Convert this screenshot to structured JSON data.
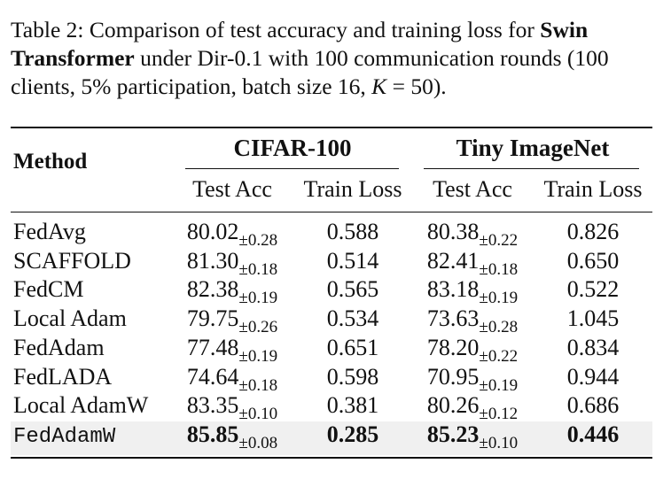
{
  "caption": {
    "prefix": "Table 2: Comparison of test accuracy and training loss for ",
    "bold_model": "Swin Transformer",
    "middle": " under Dir-0.1 with 100 communication rounds (100 clients, 5% participation, batch size 16, ",
    "k_symbol": "K",
    "k_eq": " = 50)."
  },
  "table": {
    "method_header": "Method",
    "groups": [
      {
        "title": "CIFAR-100",
        "sub_acc": "Test Acc",
        "sub_loss": "Train Loss"
      },
      {
        "title": "Tiny ImageNet",
        "sub_acc": "Test Acc",
        "sub_loss": "Train Loss"
      }
    ],
    "rows": [
      {
        "method": "FedAvg",
        "c_acc": "80.02",
        "c_std": "±0.28",
        "c_loss": "0.588",
        "t_acc": "80.38",
        "t_std": "±0.22",
        "t_loss": "0.826"
      },
      {
        "method": "SCAFFOLD",
        "c_acc": "81.30",
        "c_std": "±0.18",
        "c_loss": "0.514",
        "t_acc": "82.41",
        "t_std": "±0.18",
        "t_loss": "0.650"
      },
      {
        "method": "FedCM",
        "c_acc": "82.38",
        "c_std": "±0.19",
        "c_loss": "0.565",
        "t_acc": "83.18",
        "t_std": "±0.19",
        "t_loss": "0.522"
      },
      {
        "method": "Local Adam",
        "c_acc": "79.75",
        "c_std": "±0.26",
        "c_loss": "0.534",
        "t_acc": "73.63",
        "t_std": "±0.28",
        "t_loss": "1.045"
      },
      {
        "method": "FedAdam",
        "c_acc": "77.48",
        "c_std": "±0.19",
        "c_loss": "0.651",
        "t_acc": "78.20",
        "t_std": "±0.22",
        "t_loss": "0.834"
      },
      {
        "method": "FedLADA",
        "c_acc": "74.64",
        "c_std": "±0.18",
        "c_loss": "0.598",
        "t_acc": "70.95",
        "t_std": "±0.19",
        "t_loss": "0.944"
      },
      {
        "method": "Local AdamW",
        "c_acc": "83.35",
        "c_std": "±0.10",
        "c_loss": "0.381",
        "t_acc": "80.26",
        "t_std": "±0.12",
        "t_loss": "0.686"
      },
      {
        "method": "FedAdamW",
        "c_acc": "85.85",
        "c_std": "±0.08",
        "c_loss": "0.285",
        "t_acc": "85.23",
        "t_std": "±0.10",
        "t_loss": "0.446"
      }
    ]
  }
}
